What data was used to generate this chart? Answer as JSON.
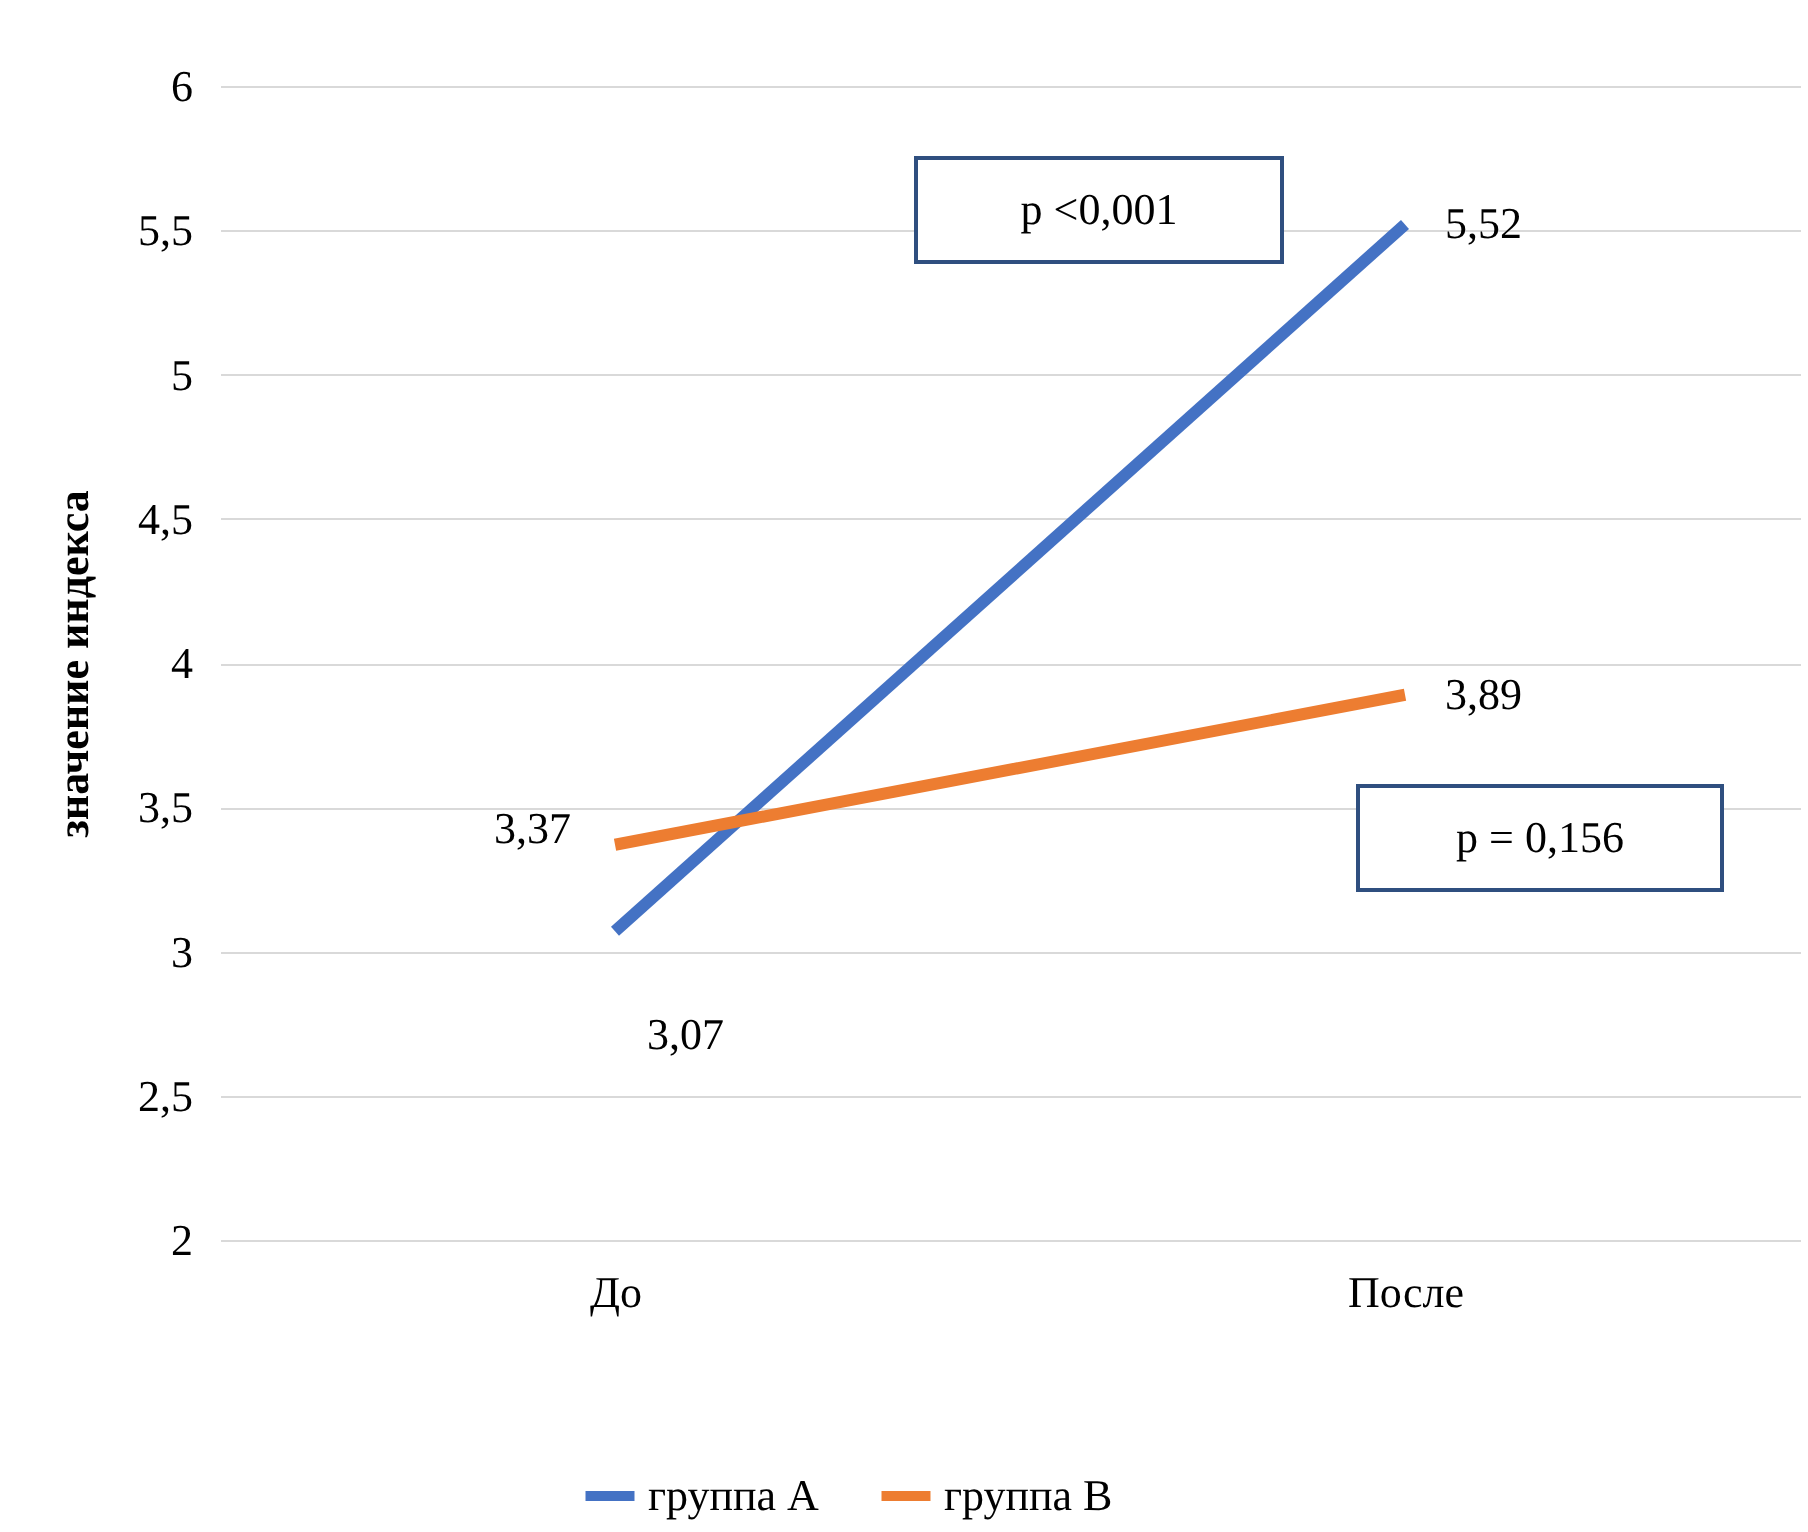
{
  "chart_data": {
    "type": "line",
    "ylabel": "значение индекса",
    "categories": [
      "До",
      "После"
    ],
    "series": [
      {
        "name": "группа A",
        "color": "#4472c4",
        "values": [
          3.07,
          5.52
        ],
        "value_labels": [
          "3,07",
          "5,52"
        ]
      },
      {
        "name": "группа B",
        "color": "#ed7d31",
        "values": [
          3.37,
          3.89
        ],
        "value_labels": [
          "3,37",
          "3,89"
        ]
      }
    ],
    "ylim": [
      2,
      6
    ],
    "yticks": [
      2,
      {
        "value": 2.5,
        "label": "2,5"
      },
      3,
      {
        "value": 3.5,
        "label": "3,5"
      },
      4,
      {
        "value": 4.5,
        "label": "4,5"
      },
      5,
      {
        "value": 5.5,
        "label": "5,5"
      },
      6
    ],
    "grid": "y",
    "legend": "bottom",
    "annotations": [
      "p <0,001",
      "p = 0,156"
    ]
  }
}
